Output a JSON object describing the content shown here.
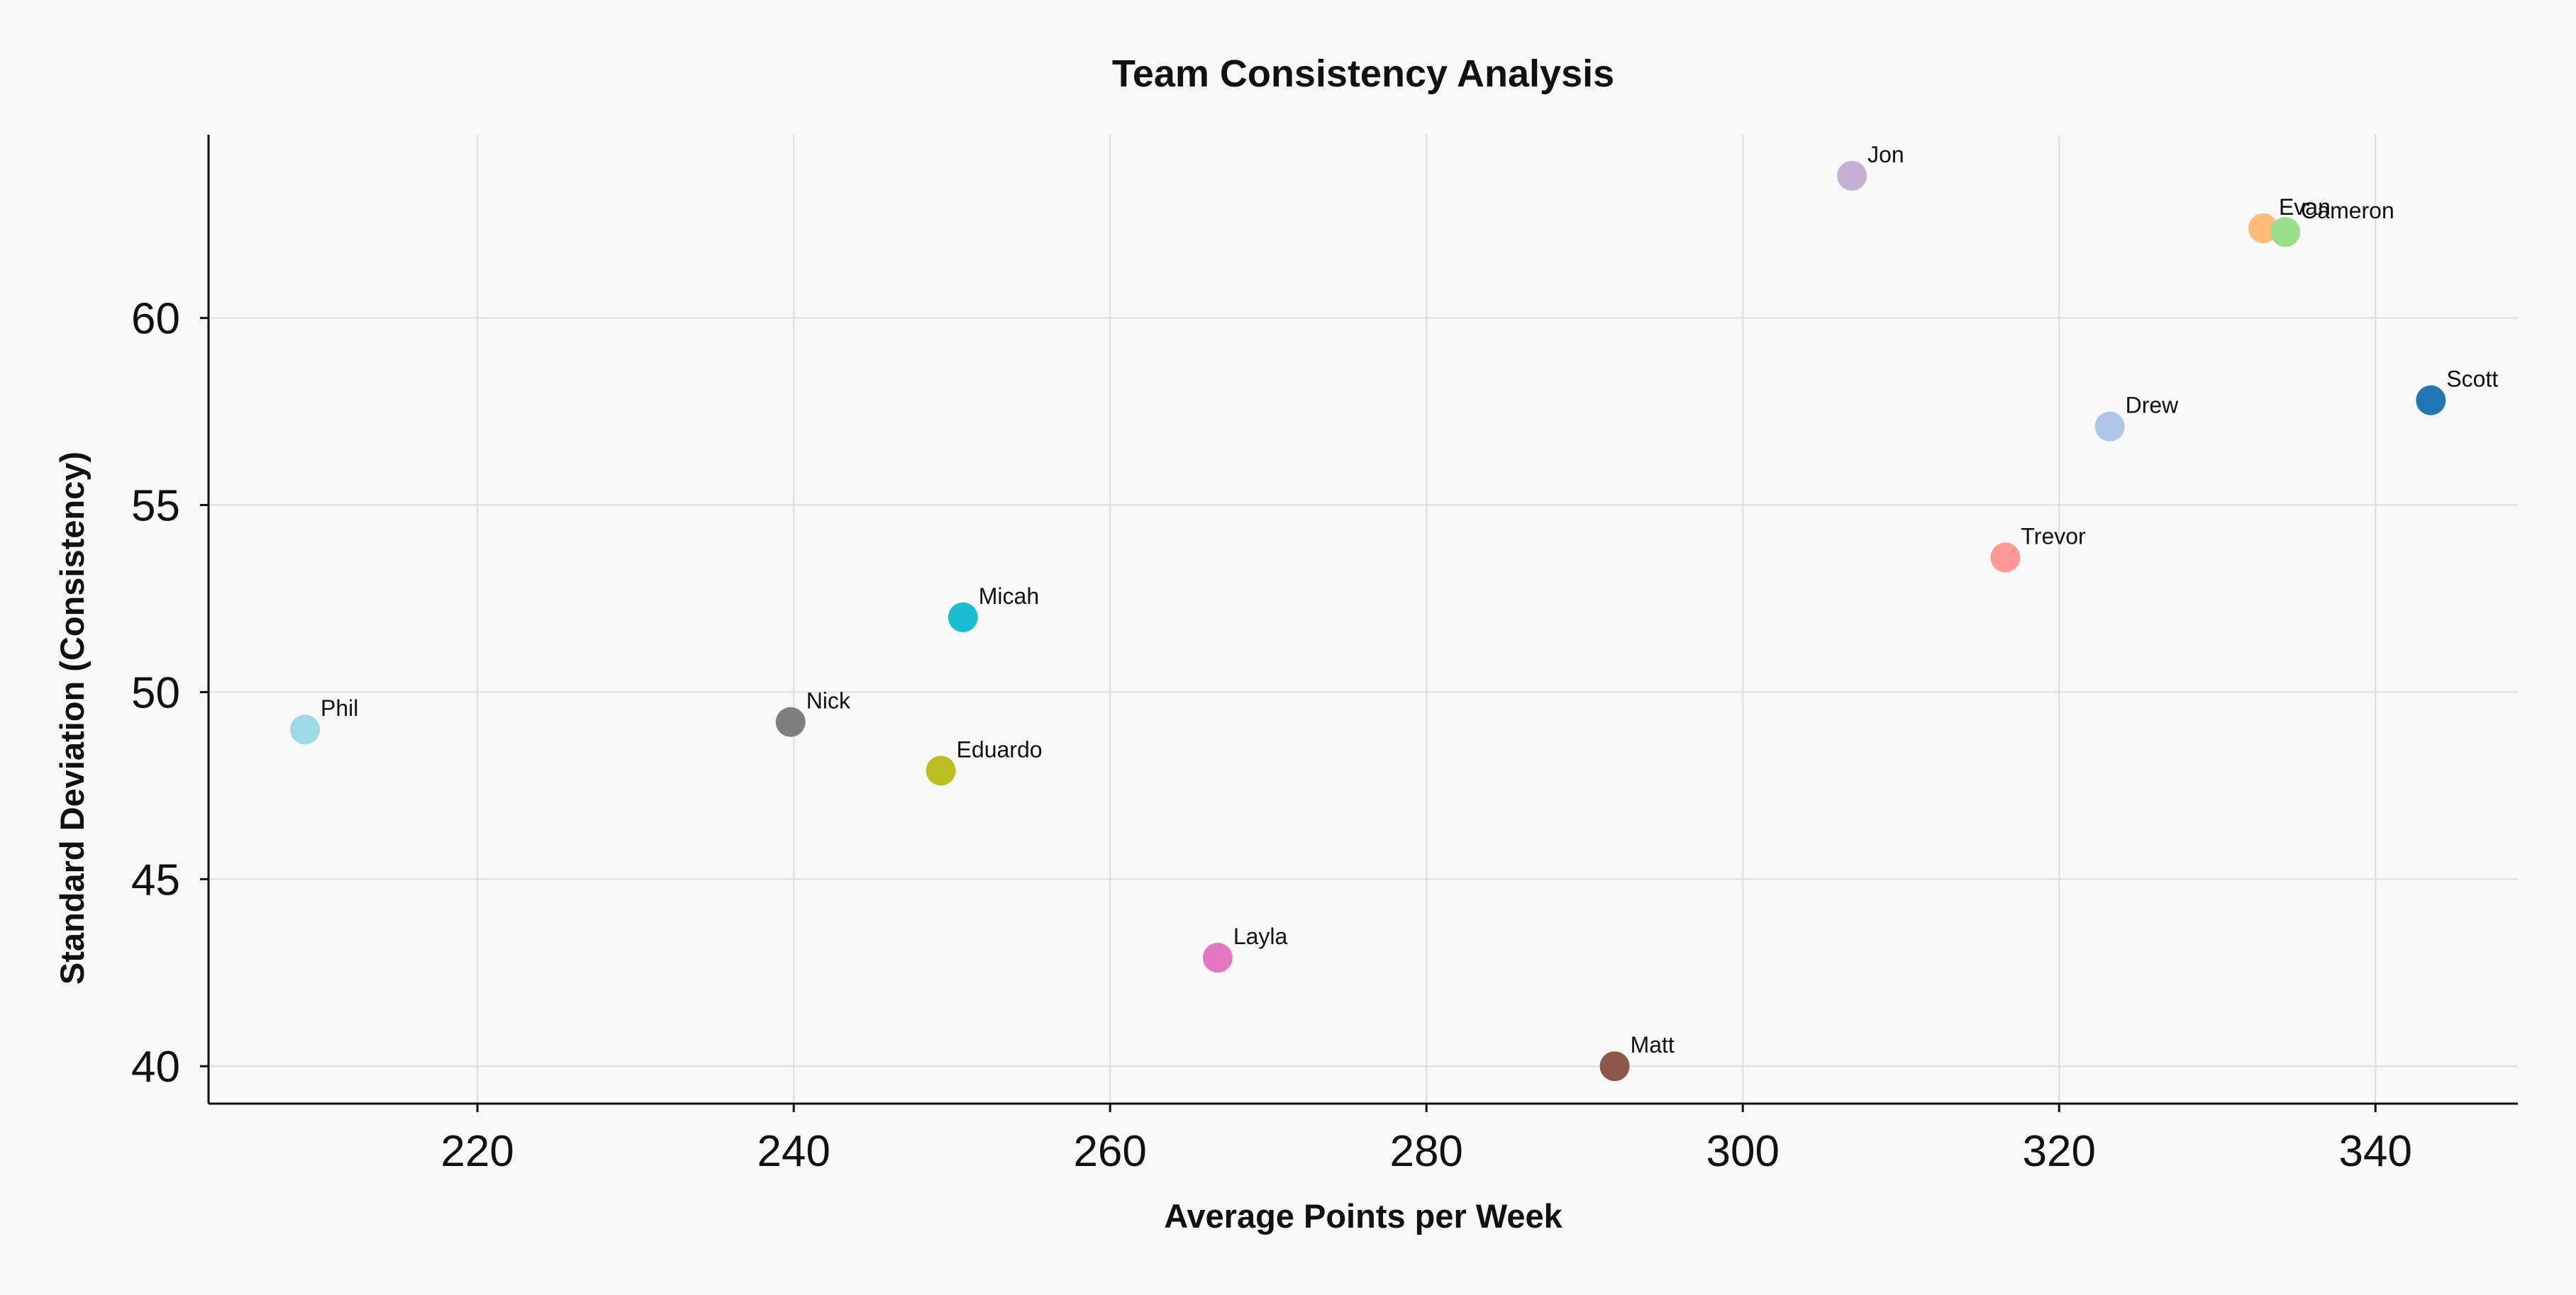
{
  "chart_data": {
    "type": "scatter",
    "title": "Team Consistency Analysis",
    "xlabel": "Average Points per Week",
    "ylabel": "Standard Deviation (Consistency)",
    "xlim": [
      203,
      349
    ],
    "ylim": [
      39,
      64.9
    ],
    "x_ticks": [
      220,
      240,
      260,
      280,
      300,
      320,
      340
    ],
    "y_ticks": [
      40,
      45,
      50,
      55,
      60
    ],
    "grid": true,
    "points": [
      {
        "label": "Phil",
        "x": 209.1,
        "y": 49.0,
        "color": "#9edae5"
      },
      {
        "label": "Nick",
        "x": 239.8,
        "y": 49.2,
        "color": "#7f7f7f"
      },
      {
        "label": "Eduardo",
        "x": 249.3,
        "y": 47.9,
        "color": "#bcbd22"
      },
      {
        "label": "Micah",
        "x": 250.7,
        "y": 52.0,
        "color": "#17becf"
      },
      {
        "label": "Layla",
        "x": 266.8,
        "y": 42.9,
        "color": "#e377c2"
      },
      {
        "label": "Matt",
        "x": 291.9,
        "y": 40.0,
        "color": "#8c564b"
      },
      {
        "label": "Jon",
        "x": 306.9,
        "y": 63.8,
        "color": "#c5b0d5"
      },
      {
        "label": "Trevor",
        "x": 316.6,
        "y": 53.6,
        "color": "#ff9896"
      },
      {
        "label": "Drew",
        "x": 323.2,
        "y": 57.1,
        "color": "#aec7e8"
      },
      {
        "label": "Evan",
        "x": 332.9,
        "y": 62.4,
        "color": "#ffbb78"
      },
      {
        "label": "Cameron",
        "x": 334.3,
        "y": 62.3,
        "color": "#98df8a"
      },
      {
        "label": "Scott",
        "x": 343.5,
        "y": 57.8,
        "color": "#1f77b4"
      }
    ]
  }
}
